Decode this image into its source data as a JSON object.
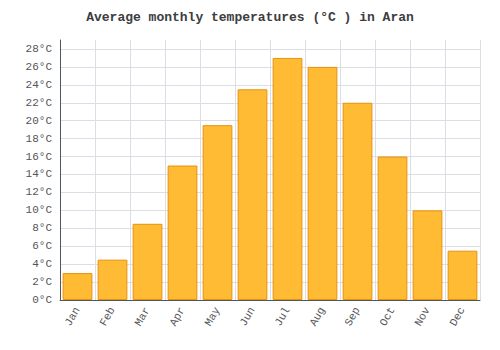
{
  "chart_data": {
    "type": "bar",
    "title": "Average monthly temperatures (°C ) in Aran",
    "categories": [
      "Jan",
      "Feb",
      "Mar",
      "Apr",
      "May",
      "Jun",
      "Jul",
      "Aug",
      "Sep",
      "Oct",
      "Nov",
      "Dec"
    ],
    "values": [
      3,
      4.5,
      8.5,
      15,
      19.5,
      23.5,
      27,
      26,
      22,
      16,
      10,
      5.5
    ],
    "color": "#FFBB33",
    "ylim": [
      0,
      29
    ],
    "yticks": [
      {
        "value": 0,
        "label": "0°C"
      },
      {
        "value": 2,
        "label": "2°C"
      },
      {
        "value": 4,
        "label": "4°C"
      },
      {
        "value": 6,
        "label": "6°C"
      },
      {
        "value": 8,
        "label": "8°C"
      },
      {
        "value": 10,
        "label": "10°C"
      },
      {
        "value": 12,
        "label": "12°C"
      },
      {
        "value": 14,
        "label": "14°C"
      },
      {
        "value": 16,
        "label": "16°C"
      },
      {
        "value": 18,
        "label": "18°C"
      },
      {
        "value": 20,
        "label": "20°C"
      },
      {
        "value": 22,
        "label": "22°C"
      },
      {
        "value": 24,
        "label": "24°C"
      },
      {
        "value": 26,
        "label": "26°C"
      },
      {
        "value": 28,
        "label": "28°C"
      }
    ],
    "grid": true
  }
}
